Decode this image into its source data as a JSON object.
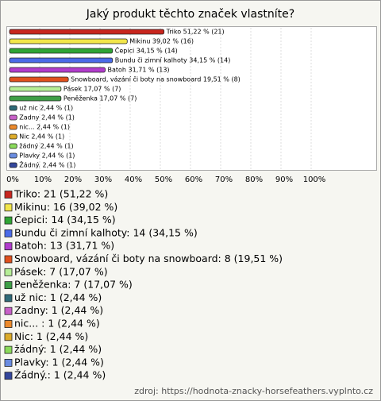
{
  "chart_data": {
    "type": "bar",
    "orientation": "horizontal",
    "title": "Jaký produkt těchto značek vlastníte?",
    "categories": [
      "Triko",
      "Mikinu",
      "Čepici",
      "Bundu či zimní kalhoty",
      "Batoh",
      "Snowboard, vázání či boty na snowboard",
      "Pásek",
      "Peněženka",
      "už nic",
      "Zadny",
      "nic...",
      "Nic",
      "žádný",
      "Plavky",
      "Žádný."
    ],
    "values": [
      51.22,
      39.02,
      34.15,
      34.15,
      31.71,
      19.51,
      17.07,
      17.07,
      2.44,
      2.44,
      2.44,
      2.44,
      2.44,
      2.44,
      2.44
    ],
    "value_labels": [
      "Triko 51,22 % (21)",
      "Mikinu 39,02 % (16)",
      "Čepici 34,15 % (14)",
      "Bundu či zimní kalhoty 34,15 % (14)",
      "Batoh 31,71 % (13)",
      "Snowboard, vázání či boty na snowboard 19,51 % (8)",
      "Pásek 17,07 % (7)",
      "Peněženka 17,07 % (7)",
      "už nic 2,44 % (1)",
      "Zadny 2,44 % (1)",
      "nic... 2,44 % (1)",
      "Nic 2,44 % (1)",
      "žádný 2,44 % (1)",
      "Plavky 2,44 % (1)",
      "Žádný. 2,44 % (1)"
    ],
    "legend_labels": [
      "Triko: 21 (51,22 %)",
      "Mikinu: 16 (39,02 %)",
      "Čepici: 14 (34,15 %)",
      "Bundu či zimní kalhoty: 14 (34,15 %)",
      "Batoh: 13 (31,71 %)",
      "Snowboard, vázání či boty na snowboard: 8 (19,51 %)",
      "Pásek: 7 (17,07 %)",
      "Peněženka: 7 (17,07 %)",
      "už nic: 1 (2,44 %)",
      "Zadny: 1 (2,44 %)",
      "nic... : 1 (2,44 %)",
      "Nic: 1 (2,44 %)",
      "žádný: 1 (2,44 %)",
      "Plavky: 1 (2,44 %)",
      "Žádný.: 1 (2,44 %)"
    ],
    "colors": [
      "#c8261e",
      "#f2e64a",
      "#2fa534",
      "#4a6ae8",
      "#b13ccc",
      "#e0501c",
      "#b6ee96",
      "#3e9e46",
      "#2f6a78",
      "#c860c8",
      "#ec8a2c",
      "#dcab2a",
      "#8ada5a",
      "#6a8ce0",
      "#34479c"
    ],
    "xlim": [
      0,
      100
    ],
    "xticks": [
      {
        "value": 0,
        "label": "0%"
      },
      {
        "value": 10,
        "label": "10%"
      },
      {
        "value": 20,
        "label": "20%"
      },
      {
        "value": 30,
        "label": "30%"
      },
      {
        "value": 40,
        "label": "40%"
      },
      {
        "value": 50,
        "label": "50%"
      },
      {
        "value": 60,
        "label": "60%"
      },
      {
        "value": 70,
        "label": "70%"
      },
      {
        "value": 80,
        "label": "80%"
      },
      {
        "value": 90,
        "label": "90%"
      },
      {
        "value": 100,
        "label": "100%"
      }
    ],
    "grid": true,
    "source": "zdroj: https://hodnota-znacky-horsefeathers.vyplnto.cz"
  }
}
